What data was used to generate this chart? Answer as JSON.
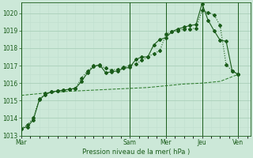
{
  "bg_color": "#cce8d8",
  "grid_color_major": "#aacfba",
  "grid_color_minor": "#bfdece",
  "line_dark": "#1a5c1a",
  "line_mid": "#2e7d2e",
  "ylim": [
    1013.0,
    1020.6
  ],
  "yticks": [
    1013,
    1014,
    1015,
    1016,
    1017,
    1018,
    1019,
    1020
  ],
  "xlabel": "Pression niveau de la mer( hPa )",
  "day_labels": [
    "Mar",
    "Sam",
    "Mer",
    "Jeu",
    "Ven"
  ],
  "day_x": [
    0,
    36,
    48,
    60,
    72
  ],
  "xlim": [
    0,
    76
  ],
  "s1_x": [
    0,
    2,
    4,
    6,
    8,
    10,
    12,
    14,
    16,
    18,
    20,
    22,
    24,
    26,
    28,
    30,
    32,
    34,
    36,
    38,
    40,
    42,
    44,
    46,
    48,
    50,
    52,
    54,
    56,
    58,
    60,
    62,
    64,
    66,
    68,
    70,
    72
  ],
  "s1_y": [
    1013.4,
    1013.6,
    1014.0,
    1015.1,
    1015.4,
    1015.5,
    1015.55,
    1015.6,
    1015.65,
    1015.7,
    1016.3,
    1016.7,
    1017.0,
    1017.0,
    1016.85,
    1016.75,
    1016.8,
    1016.9,
    1017.0,
    1017.1,
    1017.3,
    1017.5,
    1017.7,
    1017.85,
    1018.8,
    1018.95,
    1019.0,
    1019.1,
    1019.1,
    1019.15,
    1020.15,
    1020.05,
    1019.9,
    1019.3,
    1017.05,
    1016.7,
    1016.5
  ],
  "s2_x": [
    0,
    2,
    4,
    6,
    8,
    10,
    12,
    14,
    16,
    18,
    20,
    22,
    24,
    26,
    28,
    30,
    32,
    34,
    36,
    38,
    40,
    42,
    44,
    46,
    48,
    50,
    52,
    54,
    56,
    58,
    60,
    62,
    64,
    66,
    68,
    70,
    72
  ],
  "s2_y": [
    1013.4,
    1013.5,
    1013.9,
    1015.05,
    1015.35,
    1015.5,
    1015.55,
    1015.6,
    1015.65,
    1015.7,
    1016.1,
    1016.6,
    1016.95,
    1017.05,
    1016.6,
    1016.65,
    1016.7,
    1016.85,
    1016.9,
    1017.35,
    1017.5,
    1017.5,
    1018.2,
    1018.5,
    1018.6,
    1018.95,
    1019.1,
    1019.2,
    1019.3,
    1019.35,
    1020.55,
    1019.6,
    1019.0,
    1018.45,
    1018.4,
    1016.7,
    1016.5
  ],
  "s3_x": [
    0,
    6,
    12,
    18,
    24,
    30,
    36,
    42,
    48,
    54,
    60,
    66,
    72
  ],
  "s3_y": [
    1015.3,
    1015.4,
    1015.5,
    1015.55,
    1015.6,
    1015.65,
    1015.7,
    1015.75,
    1015.85,
    1015.95,
    1016.0,
    1016.1,
    1016.5
  ]
}
